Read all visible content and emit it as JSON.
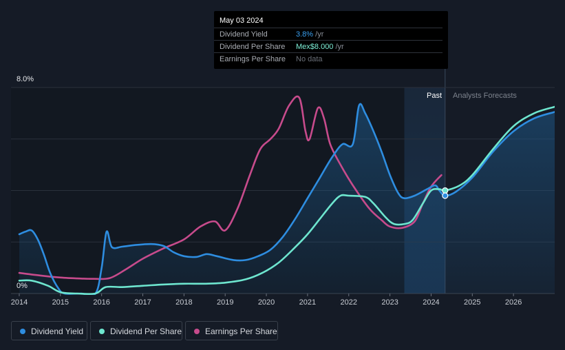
{
  "tooltip": {
    "date": "May 03 2024",
    "rows": [
      {
        "label": "Dividend Yield",
        "value": "3.8%",
        "unit": " /yr"
      },
      {
        "label": "Dividend Per Share",
        "value": "Mex$8.000",
        "unit": " /yr"
      },
      {
        "label": "Earnings Per Share",
        "value": "No data",
        "unit": ""
      }
    ]
  },
  "legend": [
    {
      "label": "Dividend Yield",
      "color": "#2e8de0"
    },
    {
      "label": "Dividend Per Share",
      "color": "#6ee6cf"
    },
    {
      "label": "Earnings Per Share",
      "color": "#c74b8c"
    }
  ],
  "colors": {
    "yield": "#2e8de0",
    "dps": "#6ee6cf",
    "eps": "#c74b8c",
    "background": "#151b26"
  },
  "chart_data": {
    "type": "line",
    "title": "",
    "xlabel": "",
    "ylabel": "",
    "y_label_top": "8.0%",
    "y_label_bottom": "0%",
    "ylim": [
      0,
      8
    ],
    "xlim": [
      2013.8,
      2027.0
    ],
    "x_ticks": [
      "2014",
      "2015",
      "2016",
      "2017",
      "2018",
      "2019",
      "2020",
      "2021",
      "2022",
      "2023",
      "2024",
      "2025",
      "2026"
    ],
    "past_label": "Past",
    "forecast_label": "Analysts Forecasts",
    "past_region": [
      2023.35,
      2024.34
    ],
    "series": [
      {
        "name": "Dividend Yield",
        "key": "yield",
        "area": true,
        "points": [
          [
            2014.0,
            2.3
          ],
          [
            2014.15,
            2.4
          ],
          [
            2014.3,
            2.45
          ],
          [
            2014.45,
            2.1
          ],
          [
            2014.6,
            1.5
          ],
          [
            2014.75,
            0.8
          ],
          [
            2014.95,
            0.2
          ],
          [
            2015.1,
            0.0
          ],
          [
            2015.5,
            0.0
          ],
          [
            2015.85,
            0.0
          ],
          [
            2016.0,
            1.0
          ],
          [
            2016.12,
            2.4
          ],
          [
            2016.25,
            1.8
          ],
          [
            2016.5,
            1.82
          ],
          [
            2016.8,
            1.88
          ],
          [
            2017.2,
            1.92
          ],
          [
            2017.5,
            1.85
          ],
          [
            2017.75,
            1.6
          ],
          [
            2018.0,
            1.45
          ],
          [
            2018.3,
            1.42
          ],
          [
            2018.55,
            1.53
          ],
          [
            2018.8,
            1.45
          ],
          [
            2019.2,
            1.3
          ],
          [
            2019.5,
            1.3
          ],
          [
            2019.8,
            1.45
          ],
          [
            2020.1,
            1.7
          ],
          [
            2020.4,
            2.2
          ],
          [
            2020.7,
            2.9
          ],
          [
            2021.0,
            3.7
          ],
          [
            2021.3,
            4.5
          ],
          [
            2021.6,
            5.3
          ],
          [
            2021.85,
            5.8
          ],
          [
            2022.1,
            5.8
          ],
          [
            2022.25,
            7.3
          ],
          [
            2022.4,
            7.0
          ],
          [
            2022.6,
            6.3
          ],
          [
            2022.8,
            5.5
          ],
          [
            2023.0,
            4.6
          ],
          [
            2023.2,
            3.9
          ],
          [
            2023.35,
            3.7
          ],
          [
            2023.6,
            3.8
          ],
          [
            2023.9,
            4.05
          ],
          [
            2024.1,
            4.2
          ],
          [
            2024.2,
            4.0
          ],
          [
            2024.34,
            3.8
          ],
          [
            2024.6,
            3.95
          ],
          [
            2025.0,
            4.5
          ],
          [
            2025.5,
            5.5
          ],
          [
            2026.0,
            6.3
          ],
          [
            2026.5,
            6.8
          ],
          [
            2027.0,
            7.05
          ]
        ]
      },
      {
        "name": "Dividend Per Share",
        "key": "dps",
        "area": false,
        "points": [
          [
            2014.0,
            0.5
          ],
          [
            2014.3,
            0.5
          ],
          [
            2014.7,
            0.3
          ],
          [
            2015.0,
            0.05
          ],
          [
            2015.4,
            0.0
          ],
          [
            2015.85,
            0.0
          ],
          [
            2016.1,
            0.25
          ],
          [
            2016.5,
            0.25
          ],
          [
            2017.0,
            0.3
          ],
          [
            2017.5,
            0.35
          ],
          [
            2018.0,
            0.38
          ],
          [
            2018.5,
            0.38
          ],
          [
            2019.0,
            0.42
          ],
          [
            2019.5,
            0.55
          ],
          [
            2019.9,
            0.8
          ],
          [
            2020.3,
            1.2
          ],
          [
            2020.7,
            1.8
          ],
          [
            2021.0,
            2.3
          ],
          [
            2021.3,
            2.9
          ],
          [
            2021.6,
            3.5
          ],
          [
            2021.8,
            3.8
          ],
          [
            2022.0,
            3.8
          ],
          [
            2022.4,
            3.75
          ],
          [
            2022.6,
            3.5
          ],
          [
            2022.9,
            2.95
          ],
          [
            2023.1,
            2.7
          ],
          [
            2023.35,
            2.7
          ],
          [
            2023.55,
            2.85
          ],
          [
            2023.8,
            3.5
          ],
          [
            2024.0,
            4.0
          ],
          [
            2024.2,
            4.05
          ],
          [
            2024.34,
            4.0
          ],
          [
            2024.7,
            4.2
          ],
          [
            2025.0,
            4.6
          ],
          [
            2025.5,
            5.6
          ],
          [
            2026.0,
            6.5
          ],
          [
            2026.5,
            7.0
          ],
          [
            2027.0,
            7.25
          ]
        ]
      },
      {
        "name": "Earnings Per Share",
        "key": "eps",
        "area": false,
        "points": [
          [
            2014.0,
            0.8
          ],
          [
            2014.5,
            0.7
          ],
          [
            2015.0,
            0.62
          ],
          [
            2015.5,
            0.58
          ],
          [
            2015.8,
            0.57
          ],
          [
            2016.2,
            0.6
          ],
          [
            2016.6,
            0.95
          ],
          [
            2017.0,
            1.35
          ],
          [
            2017.5,
            1.75
          ],
          [
            2018.0,
            2.1
          ],
          [
            2018.4,
            2.6
          ],
          [
            2018.75,
            2.8
          ],
          [
            2019.0,
            2.45
          ],
          [
            2019.3,
            3.3
          ],
          [
            2019.6,
            4.6
          ],
          [
            2019.85,
            5.6
          ],
          [
            2020.1,
            6.0
          ],
          [
            2020.3,
            6.4
          ],
          [
            2020.55,
            7.3
          ],
          [
            2020.8,
            7.6
          ],
          [
            2020.95,
            6.3
          ],
          [
            2021.05,
            6.0
          ],
          [
            2021.25,
            7.2
          ],
          [
            2021.4,
            6.8
          ],
          [
            2021.55,
            5.8
          ],
          [
            2021.8,
            5.0
          ],
          [
            2022.1,
            4.2
          ],
          [
            2022.5,
            3.3
          ],
          [
            2022.8,
            2.85
          ],
          [
            2023.0,
            2.6
          ],
          [
            2023.3,
            2.55
          ],
          [
            2023.6,
            2.8
          ],
          [
            2023.8,
            3.5
          ],
          [
            2024.0,
            4.15
          ],
          [
            2024.25,
            4.6
          ]
        ]
      }
    ],
    "markers": [
      {
        "series": "dps",
        "x": 2024.34,
        "y": 4.0
      },
      {
        "series": "yield",
        "x": 2024.34,
        "y": 3.8
      }
    ]
  }
}
